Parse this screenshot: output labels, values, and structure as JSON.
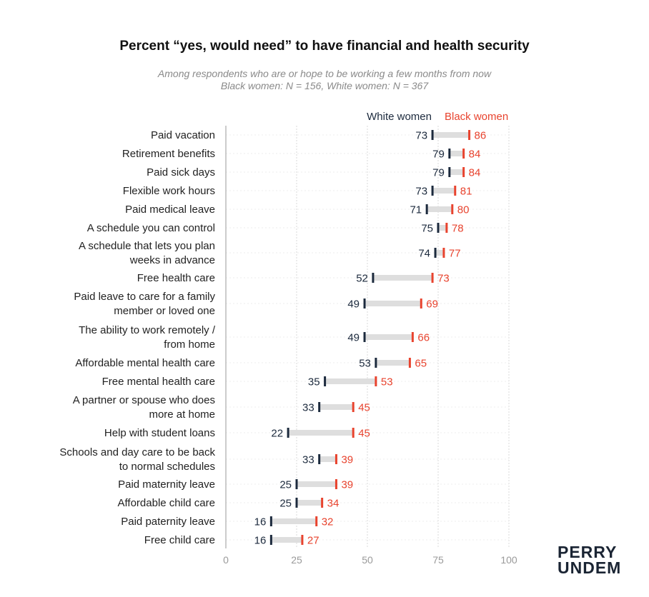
{
  "title": "Percent “yes, would need” to have financial and health security",
  "subtitle": [
    "Among respondents who are or hope to be working a few months from now",
    "Black women: N = 156, White women: N = 367"
  ],
  "brand": [
    "PERRY",
    "UNDEM"
  ],
  "colors": {
    "white_women": "#1c2a3d",
    "black_women": "#e8432e",
    "range": "#dedede",
    "grid": "#d9d9d9",
    "axis_text": "#9a9a9a"
  },
  "chart_data": {
    "type": "dumbbell",
    "series": [
      {
        "name": "White women",
        "values": [
          73,
          79,
          79,
          73,
          71,
          75,
          74,
          52,
          49,
          49,
          53,
          35,
          33,
          22,
          33,
          25,
          25,
          16,
          16
        ]
      },
      {
        "name": "Black women",
        "values": [
          86,
          84,
          84,
          81,
          80,
          78,
          77,
          73,
          69,
          66,
          65,
          53,
          45,
          45,
          39,
          39,
          34,
          32,
          27
        ]
      }
    ],
    "categories": [
      [
        "Paid vacation"
      ],
      [
        "Retirement benefits"
      ],
      [
        "Paid sick days"
      ],
      [
        "Flexible work hours"
      ],
      [
        "Paid medical leave"
      ],
      [
        "A schedule you can control"
      ],
      [
        "A schedule that lets you plan",
        "weeks in advance"
      ],
      [
        "Free health care"
      ],
      [
        "Paid leave to care for a family",
        "member or loved one"
      ],
      [
        "The ability to work remotely /",
        "from home"
      ],
      [
        "Affordable mental health care"
      ],
      [
        "Free mental health care"
      ],
      [
        "A partner or spouse who does",
        "more at home"
      ],
      [
        "Help with student loans"
      ],
      [
        "Schools and day care to be back",
        "to normal schedules"
      ],
      [
        "Paid maternity leave"
      ],
      [
        "Affordable child care"
      ],
      [
        "Paid paternity leave"
      ],
      [
        "Free child care"
      ]
    ],
    "xlim": [
      0,
      100
    ],
    "xticks": [
      0,
      25,
      50,
      75,
      100
    ],
    "grid": true,
    "legend": "top"
  }
}
